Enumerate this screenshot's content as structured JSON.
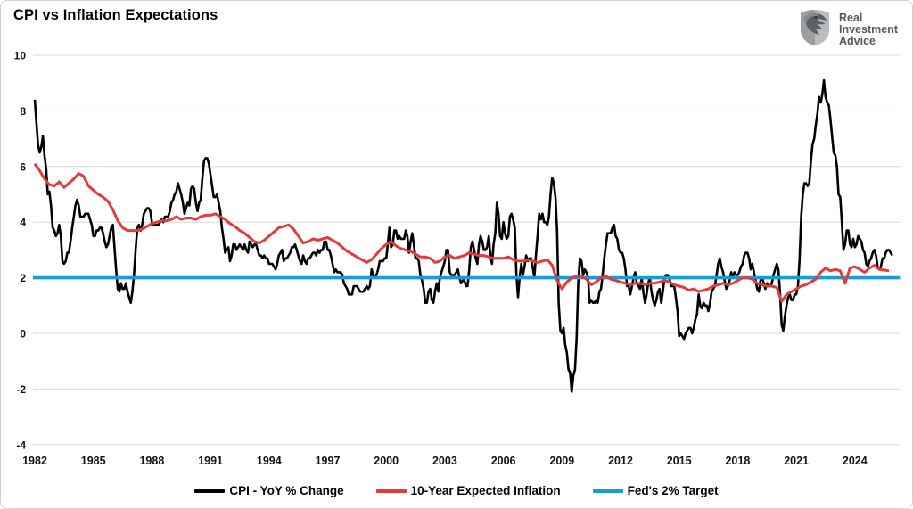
{
  "page": {
    "title": "CPI vs Inflation Expectations"
  },
  "logo": {
    "lines": [
      "Real",
      "Investment",
      "Advice"
    ],
    "icon": "eagle-shield-icon",
    "icon_color": "#808487"
  },
  "legend": {
    "items": [
      {
        "label": "CPI - YoY % Change",
        "color": "#000000"
      },
      {
        "label": "10-Year Expected Inflation",
        "color": "#e23b3e"
      },
      {
        "label": "Fed's 2% Target",
        "color": "#189cd8"
      }
    ]
  },
  "chart_data": {
    "type": "line",
    "title": "CPI vs Inflation Expectations",
    "xlabel": "",
    "ylabel": "",
    "grid": true,
    "gridline_color": "#d8d8d8",
    "legend_position": "bottom",
    "x_axis": {
      "ticks": [
        1982,
        1985,
        1988,
        1991,
        1994,
        1997,
        2000,
        2003,
        2006,
        2009,
        2012,
        2015,
        2018,
        2021,
        2024
      ],
      "range": [
        1981.9,
        2026.3
      ]
    },
    "y_axis": {
      "ticks": [
        10,
        8,
        6,
        4,
        2,
        0,
        -2,
        -4
      ],
      "range": [
        -4,
        10
      ]
    },
    "series": [
      {
        "name": "CPI - YoY % Change",
        "color": "#000000",
        "width": 2.6,
        "start": 1982.0,
        "step": 0.083333,
        "values": [
          8.4,
          7.6,
          6.8,
          6.5,
          6.7,
          7.1,
          6.4,
          5.9,
          5.0,
          5.1,
          4.6,
          3.8,
          3.7,
          3.5,
          3.6,
          3.9,
          3.5,
          2.6,
          2.5,
          2.6,
          2.9,
          2.9,
          3.3,
          3.8,
          4.2,
          4.6,
          4.8,
          4.6,
          4.2,
          4.2,
          4.2,
          4.3,
          4.3,
          4.3,
          4.1,
          3.9,
          3.5,
          3.5,
          3.7,
          3.7,
          3.8,
          3.8,
          3.6,
          3.3,
          3.1,
          3.2,
          3.5,
          3.8,
          3.9,
          3.1,
          2.3,
          1.6,
          1.5,
          1.8,
          1.6,
          1.6,
          1.8,
          1.5,
          1.3,
          1.1,
          1.5,
          2.1,
          3.0,
          3.8,
          3.9,
          3.7,
          3.9,
          4.3,
          4.4,
          4.5,
          4.5,
          4.4,
          4.0,
          3.9,
          3.9,
          3.9,
          3.9,
          4.0,
          4.1,
          4.0,
          4.2,
          4.2,
          4.2,
          4.4,
          4.7,
          4.8,
          5.0,
          5.1,
          5.4,
          5.2,
          5.0,
          4.7,
          4.3,
          4.5,
          4.7,
          4.6,
          5.2,
          5.3,
          5.2,
          4.7,
          4.4,
          4.7,
          4.8,
          5.6,
          6.2,
          6.3,
          6.3,
          6.1,
          5.7,
          5.3,
          4.9,
          4.9,
          5.0,
          4.7,
          4.4,
          3.8,
          3.4,
          2.9,
          3.0,
          3.1,
          2.6,
          2.8,
          3.2,
          3.2,
          3.0,
          3.1,
          3.2,
          3.1,
          3.0,
          3.2,
          3.0,
          2.9,
          3.3,
          3.2,
          3.1,
          3.2,
          3.2,
          3.0,
          2.8,
          2.8,
          2.7,
          2.8,
          2.7,
          2.7,
          2.5,
          2.5,
          2.5,
          2.4,
          2.3,
          2.5,
          2.8,
          2.9,
          3.0,
          2.6,
          2.7,
          2.7,
          2.8,
          2.9,
          3.1,
          3.1,
          3.2,
          3.0,
          2.8,
          2.6,
          2.5,
          2.8,
          2.6,
          2.5,
          2.7,
          2.7,
          2.8,
          2.9,
          2.9,
          2.8,
          3.0,
          2.9,
          3.0,
          3.0,
          3.3,
          3.3,
          3.0,
          3.0,
          2.8,
          2.5,
          2.2,
          2.3,
          2.2,
          2.2,
          2.2,
          2.1,
          1.8,
          1.7,
          1.6,
          1.4,
          1.4,
          1.4,
          1.7,
          1.7,
          1.7,
          1.6,
          1.5,
          1.5,
          1.5,
          1.6,
          1.7,
          1.6,
          1.7,
          2.3,
          2.1,
          2.0,
          2.1,
          2.3,
          2.6,
          2.6,
          2.6,
          2.7,
          2.7,
          3.2,
          3.8,
          3.1,
          3.2,
          3.7,
          3.7,
          3.4,
          3.5,
          3.4,
          3.4,
          3.4,
          3.7,
          3.5,
          2.9,
          3.3,
          3.6,
          3.2,
          2.7,
          2.7,
          2.6,
          2.1,
          1.9,
          1.6,
          1.1,
          1.1,
          1.5,
          1.6,
          1.2,
          1.1,
          1.5,
          1.8,
          1.5,
          2.0,
          2.2,
          2.4,
          2.6,
          3.0,
          3.0,
          2.2,
          2.1,
          2.1,
          2.1,
          2.2,
          2.3,
          2.0,
          1.8,
          1.9,
          1.9,
          1.7,
          1.7,
          2.3,
          3.1,
          3.3,
          3.0,
          2.7,
          2.5,
          3.2,
          3.5,
          3.3,
          3.0,
          3.0,
          3.1,
          3.5,
          2.8,
          2.5,
          3.2,
          3.6,
          4.7,
          4.3,
          3.5,
          3.4,
          4.0,
          3.6,
          3.4,
          3.5,
          4.2,
          4.3,
          4.1,
          3.8,
          2.1,
          1.3,
          2.0,
          2.5,
          2.1,
          2.4,
          2.8,
          2.6,
          2.7,
          2.7,
          2.4,
          2.0,
          2.8,
          3.5,
          4.3,
          4.1,
          4.3,
          4.0,
          4.0,
          3.9,
          4.2,
          5.0,
          5.6,
          5.4,
          4.9,
          3.7,
          1.1,
          0.1,
          0.0,
          0.2,
          -0.4,
          -0.7,
          -1.3,
          -1.4,
          -2.1,
          -1.5,
          -1.3,
          -0.2,
          1.8,
          2.7,
          2.6,
          2.1,
          2.3,
          2.2,
          2.0,
          1.1,
          1.2,
          1.1,
          1.1,
          1.2,
          1.1,
          1.5,
          1.6,
          2.1,
          2.7,
          3.2,
          3.6,
          3.6,
          3.6,
          3.8,
          3.9,
          3.5,
          3.4,
          3.0,
          2.9,
          2.9,
          2.7,
          2.3,
          1.7,
          1.7,
          1.4,
          1.7,
          2.0,
          2.2,
          1.8,
          1.7,
          1.6,
          2.0,
          1.5,
          1.1,
          1.4,
          1.8,
          2.0,
          1.5,
          1.2,
          1.0,
          1.2,
          1.5,
          1.6,
          1.1,
          1.5,
          2.0,
          2.1,
          2.1,
          2.0,
          1.7,
          1.7,
          1.7,
          1.3,
          0.8,
          -0.1,
          0.0,
          -0.1,
          -0.2,
          0.0,
          0.1,
          0.2,
          0.2,
          0.0,
          0.2,
          0.5,
          0.7,
          1.4,
          1.0,
          0.9,
          1.1,
          1.0,
          1.0,
          0.8,
          1.1,
          1.5,
          1.6,
          1.7,
          2.1,
          2.5,
          2.7,
          2.4,
          2.2,
          1.9,
          1.6,
          1.7,
          1.9,
          2.2,
          2.0,
          2.2,
          2.1,
          2.1,
          2.2,
          2.4,
          2.5,
          2.8,
          2.9,
          2.9,
          2.7,
          2.3,
          2.5,
          2.2,
          1.9,
          1.6,
          1.5,
          1.9,
          2.0,
          1.8,
          1.6,
          1.8,
          1.7,
          1.7,
          1.8,
          2.1,
          2.3,
          2.5,
          2.3,
          1.5,
          0.3,
          0.1,
          0.6,
          1.0,
          1.3,
          1.4,
          1.2,
          1.2,
          1.4,
          1.4,
          1.7,
          2.6,
          4.2,
          5.0,
          5.4,
          5.4,
          5.3,
          5.4,
          6.2,
          6.8,
          7.0,
          7.5,
          7.9,
          8.5,
          8.3,
          8.6,
          9.1,
          8.5,
          8.3,
          8.2,
          7.7,
          7.1,
          6.5,
          6.4,
          6.0,
          5.0,
          4.9,
          4.0,
          3.0,
          3.2,
          3.7,
          3.7,
          3.2,
          3.1,
          3.4,
          3.1,
          3.2,
          3.5,
          3.4,
          3.3,
          3.0,
          2.9,
          2.5,
          2.4,
          2.6,
          2.7,
          2.9,
          3.0,
          2.8,
          2.4,
          2.3,
          2.4,
          2.7,
          2.7,
          2.9,
          3.0,
          3.0,
          2.9,
          2.8
        ]
      },
      {
        "name": "Fed's 2% Target",
        "color": "#189cd8",
        "width": 3.6,
        "start": 1981.91,
        "step": 44.4,
        "values": [
          2,
          2
        ]
      },
      {
        "name": "10-Year Expected Inflation",
        "color": "#e23b3e",
        "width": 3.0,
        "start": 1982.0,
        "step": 0.25,
        "values": [
          6.1,
          5.85,
          5.55,
          5.35,
          5.3,
          5.45,
          5.25,
          5.4,
          5.55,
          5.75,
          5.65,
          5.3,
          5.15,
          5.0,
          4.9,
          4.75,
          4.45,
          4.05,
          3.8,
          3.7,
          3.7,
          3.7,
          3.75,
          3.85,
          3.95,
          4.0,
          4.05,
          4.05,
          4.1,
          4.2,
          4.1,
          4.15,
          4.15,
          4.1,
          4.2,
          4.25,
          4.25,
          4.3,
          4.2,
          4.1,
          3.95,
          3.85,
          3.7,
          3.6,
          3.45,
          3.3,
          3.25,
          3.35,
          3.5,
          3.65,
          3.8,
          3.85,
          3.9,
          3.75,
          3.5,
          3.25,
          3.3,
          3.4,
          3.35,
          3.4,
          3.45,
          3.35,
          3.25,
          3.1,
          2.95,
          2.85,
          2.75,
          2.65,
          2.55,
          2.65,
          2.85,
          3.05,
          3.2,
          3.3,
          3.15,
          3.05,
          3.0,
          2.95,
          2.85,
          2.75,
          2.75,
          2.7,
          2.55,
          2.6,
          2.75,
          2.8,
          2.7,
          2.75,
          2.8,
          2.9,
          2.85,
          2.8,
          2.8,
          2.75,
          2.7,
          2.7,
          2.7,
          2.75,
          2.65,
          2.6,
          2.6,
          2.65,
          2.6,
          2.55,
          2.6,
          2.65,
          2.45,
          1.9,
          1.6,
          1.85,
          2.0,
          2.05,
          2.05,
          1.95,
          1.75,
          1.85,
          2.0,
          2.05,
          1.95,
          1.9,
          1.85,
          1.8,
          1.75,
          1.8,
          1.8,
          1.75,
          1.8,
          1.8,
          1.85,
          1.9,
          1.85,
          1.75,
          1.7,
          1.65,
          1.55,
          1.6,
          1.5,
          1.55,
          1.6,
          1.7,
          1.75,
          1.8,
          1.75,
          1.8,
          1.9,
          2.0,
          2.0,
          1.95,
          1.8,
          1.75,
          1.7,
          1.7,
          1.65,
          1.15,
          1.4,
          1.5,
          1.6,
          1.7,
          1.75,
          1.85,
          1.95,
          2.2,
          2.35,
          2.25,
          2.3,
          2.25,
          1.8,
          2.35,
          2.4,
          2.3,
          2.2,
          2.35,
          2.45,
          2.3,
          2.28,
          2.25
        ]
      }
    ]
  }
}
